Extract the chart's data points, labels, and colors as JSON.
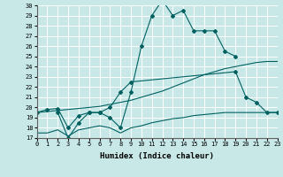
{
  "xlabel": "Humidex (Indice chaleur)",
  "bg_color": "#c8e8e8",
  "line_color": "#006060",
  "grid_color": "#b0d0d0",
  "ylim": [
    17,
    30
  ],
  "xlim": [
    0,
    23
  ],
  "yticks": [
    17,
    18,
    19,
    20,
    21,
    22,
    23,
    24,
    25,
    26,
    27,
    28,
    29,
    30
  ],
  "xticks": [
    0,
    1,
    2,
    3,
    4,
    5,
    6,
    7,
    8,
    9,
    10,
    11,
    12,
    13,
    14,
    15,
    16,
    17,
    18,
    19,
    20,
    21,
    22,
    23
  ],
  "lines": [
    {
      "x": [
        2,
        3,
        4,
        5,
        6,
        7,
        8,
        9,
        10,
        11,
        12,
        13,
        14,
        15,
        16,
        17,
        18,
        19
      ],
      "y": [
        19.5,
        17.0,
        18.5,
        19.5,
        19.5,
        19.0,
        18.0,
        21.5,
        26.0,
        29.0,
        30.5,
        29.0,
        29.5,
        27.5,
        27.5,
        27.5,
        25.5,
        25.0
      ],
      "has_markers": true
    },
    {
      "x": [
        0,
        1,
        2,
        3,
        4,
        5,
        6,
        7,
        8,
        9,
        19,
        20,
        21,
        22,
        23
      ],
      "y": [
        19.5,
        19.8,
        19.9,
        18.0,
        19.2,
        19.5,
        19.5,
        20.0,
        21.5,
        22.5,
        23.5,
        21.0,
        20.5,
        19.5,
        19.5
      ],
      "has_markers": true
    },
    {
      "x": [
        0,
        1,
        2,
        3,
        4,
        5,
        6,
        7,
        8,
        9,
        10,
        11,
        12,
        13,
        14,
        15,
        16,
        17,
        18,
        19,
        20,
        21,
        22,
        23
      ],
      "y": [
        17.5,
        17.5,
        17.8,
        17.2,
        17.8,
        18.0,
        18.2,
        18.0,
        17.5,
        18.0,
        18.2,
        18.5,
        18.7,
        18.9,
        19.0,
        19.2,
        19.3,
        19.4,
        19.5,
        19.5,
        19.5,
        19.5,
        19.5,
        19.5
      ],
      "has_markers": false
    },
    {
      "x": [
        0,
        1,
        2,
        3,
        4,
        5,
        6,
        7,
        8,
        9,
        10,
        11,
        12,
        13,
        14,
        15,
        16,
        17,
        18,
        19,
        20,
        21,
        22,
        23
      ],
      "y": [
        19.5,
        19.6,
        19.7,
        19.8,
        19.9,
        20.0,
        20.1,
        20.3,
        20.5,
        20.7,
        21.0,
        21.3,
        21.6,
        22.0,
        22.4,
        22.8,
        23.2,
        23.5,
        23.8,
        24.0,
        24.2,
        24.4,
        24.5,
        24.5
      ],
      "has_markers": false
    }
  ]
}
